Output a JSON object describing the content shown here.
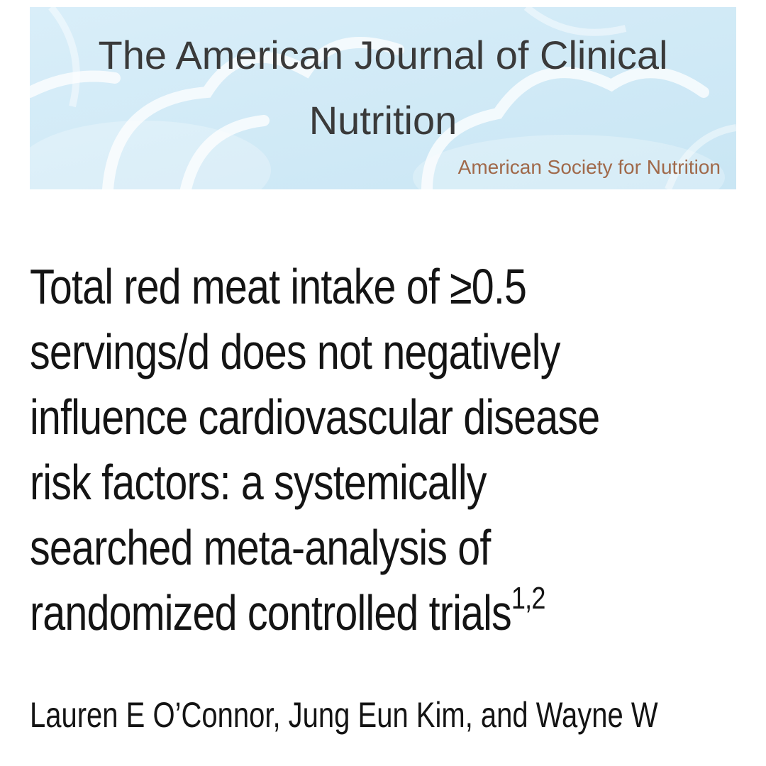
{
  "header": {
    "journal_title": "The American Journal of Clinical Nutrition",
    "society": "American Society for Nutrition",
    "background_color": "#d2eaf6",
    "society_color": "#a0694a"
  },
  "article": {
    "title": "Total red meat intake of ≥0.5 servings/d does not negatively influence cardiovascular disease risk factors: a systemically searched meta-analysis of randomized controlled trials",
    "footnote_refs": "1,2",
    "authors": "Lauren E O’Connor, Jung Eun Kim, and Wayne W"
  }
}
